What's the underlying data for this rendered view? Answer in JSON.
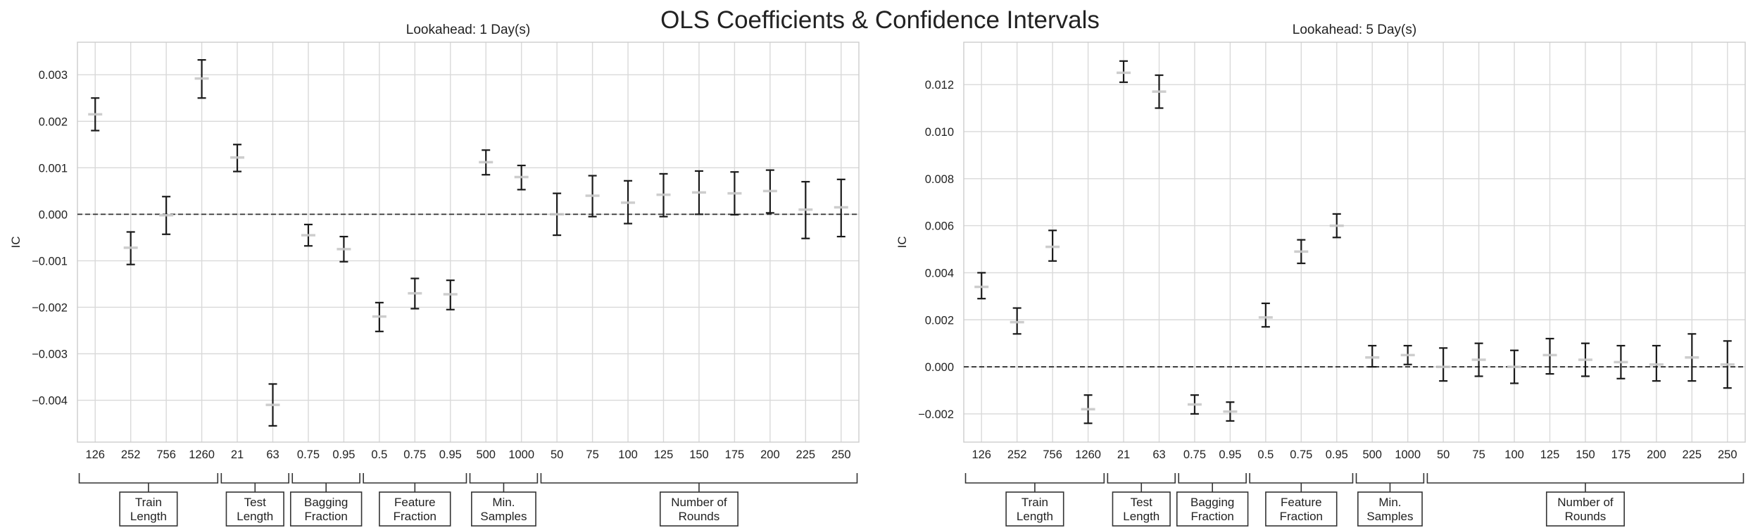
{
  "figure": {
    "title": "OLS Coefficients & Confidence Intervals"
  },
  "colors": {
    "grid": "#d9d9d9",
    "axes_border": "#cccccc",
    "errorbar": "#1a1a1a",
    "marker": "#c8c8c8",
    "zero_line": "#333333",
    "bracket": "#333333"
  },
  "chart_data": [
    {
      "type": "errorbar",
      "title": "Lookahead: 1 Day(s)",
      "xlabel": "",
      "ylabel": "IC",
      "ylim": [
        -0.0049,
        0.0037
      ],
      "yticks": [
        0.003,
        0.002,
        0.001,
        0.0,
        -0.001,
        -0.002,
        -0.003,
        -0.004
      ],
      "ytick_labels": [
        "0.003",
        "0.002",
        "0.001",
        "0.000",
        "−0.001",
        "−0.002",
        "−0.003",
        "−0.004"
      ],
      "zero_line": true,
      "grid": true,
      "categories": [
        "126",
        "252",
        "756",
        "1260",
        "21",
        "63",
        "0.75",
        "0.95",
        "0.5",
        "0.75",
        "0.95",
        "500",
        "1000",
        "50",
        "75",
        "100",
        "125",
        "150",
        "175",
        "200",
        "225",
        "250"
      ],
      "coef": [
        0.00215,
        -0.00072,
        -2e-05,
        0.00292,
        0.00122,
        -0.0041,
        -0.00045,
        -0.00075,
        -0.0022,
        -0.0017,
        -0.00172,
        0.00112,
        0.0008,
        0.0,
        0.0004,
        0.00025,
        0.00042,
        0.00047,
        0.00045,
        0.0005,
        0.0001,
        0.00015
      ],
      "lower": [
        0.0018,
        -0.00108,
        -0.00043,
        0.0025,
        0.00092,
        -0.00455,
        -0.00068,
        -0.00102,
        -0.00252,
        -0.00203,
        -0.00205,
        0.00085,
        0.00053,
        -0.00045,
        -5e-05,
        -0.0002,
        -5e-05,
        0.0,
        -1e-05,
        3e-05,
        -0.00052,
        -0.00048
      ],
      "upper": [
        0.0025,
        -0.00038,
        0.00038,
        0.00332,
        0.0015,
        -0.00365,
        -0.00022,
        -0.00048,
        -0.0019,
        -0.00138,
        -0.00142,
        0.00138,
        0.00105,
        0.00045,
        0.00083,
        0.00072,
        0.00087,
        0.00093,
        0.00091,
        0.00095,
        0.0007,
        0.00075
      ],
      "groups": [
        {
          "label_lines": [
            "Train",
            "Length"
          ],
          "start": 0,
          "end": 3
        },
        {
          "label_lines": [
            "Test",
            "Length"
          ],
          "start": 4,
          "end": 5
        },
        {
          "label_lines": [
            "Bagging",
            "Fraction"
          ],
          "start": 6,
          "end": 7
        },
        {
          "label_lines": [
            "Feature",
            "Fraction"
          ],
          "start": 8,
          "end": 10
        },
        {
          "label_lines": [
            "Min.",
            "Samples"
          ],
          "start": 11,
          "end": 12
        },
        {
          "label_lines": [
            "Number of",
            "Rounds"
          ],
          "start": 13,
          "end": 21
        }
      ]
    },
    {
      "type": "errorbar",
      "title": "Lookahead: 5 Day(s)",
      "xlabel": "",
      "ylabel": "IC",
      "ylim": [
        -0.0032,
        0.0138
      ],
      "yticks": [
        0.012,
        0.01,
        0.008,
        0.006,
        0.004,
        0.002,
        0.0,
        -0.002
      ],
      "ytick_labels": [
        "0.012",
        "0.010",
        "0.008",
        "0.006",
        "0.004",
        "0.002",
        "0.000",
        "−0.002"
      ],
      "zero_line": true,
      "grid": true,
      "categories": [
        "126",
        "252",
        "756",
        "1260",
        "21",
        "63",
        "0.75",
        "0.95",
        "0.5",
        "0.75",
        "0.95",
        "500",
        "1000",
        "50",
        "75",
        "100",
        "125",
        "150",
        "175",
        "200",
        "225",
        "250"
      ],
      "coef": [
        0.0034,
        0.0019,
        0.0051,
        -0.0018,
        0.0125,
        0.0117,
        -0.0016,
        -0.0019,
        0.0021,
        0.0049,
        0.006,
        0.0004,
        0.0005,
        0.0,
        0.0003,
        0.0,
        0.0005,
        0.0003,
        0.0002,
        0.0001,
        0.0004,
        0.0001
      ],
      "lower": [
        0.0029,
        0.0014,
        0.0045,
        -0.0024,
        0.0121,
        0.011,
        -0.002,
        -0.0023,
        0.0017,
        0.0044,
        0.0055,
        0.0,
        0.0001,
        -0.0006,
        -0.0004,
        -0.0007,
        -0.0003,
        -0.0004,
        -0.0005,
        -0.0006,
        -0.0006,
        -0.0009
      ],
      "upper": [
        0.004,
        0.0025,
        0.0058,
        -0.0012,
        0.013,
        0.0124,
        -0.0012,
        -0.0015,
        0.0027,
        0.0054,
        0.0065,
        0.0009,
        0.0009,
        0.0008,
        0.001,
        0.0007,
        0.0012,
        0.001,
        0.0009,
        0.0009,
        0.0014,
        0.0011
      ],
      "groups": [
        {
          "label_lines": [
            "Train",
            "Length"
          ],
          "start": 0,
          "end": 3
        },
        {
          "label_lines": [
            "Test",
            "Length"
          ],
          "start": 4,
          "end": 5
        },
        {
          "label_lines": [
            "Bagging",
            "Fraction"
          ],
          "start": 6,
          "end": 7
        },
        {
          "label_lines": [
            "Feature",
            "Fraction"
          ],
          "start": 8,
          "end": 10
        },
        {
          "label_lines": [
            "Min.",
            "Samples"
          ],
          "start": 11,
          "end": 12
        },
        {
          "label_lines": [
            "Number of",
            "Rounds"
          ],
          "start": 13,
          "end": 21
        }
      ]
    }
  ]
}
